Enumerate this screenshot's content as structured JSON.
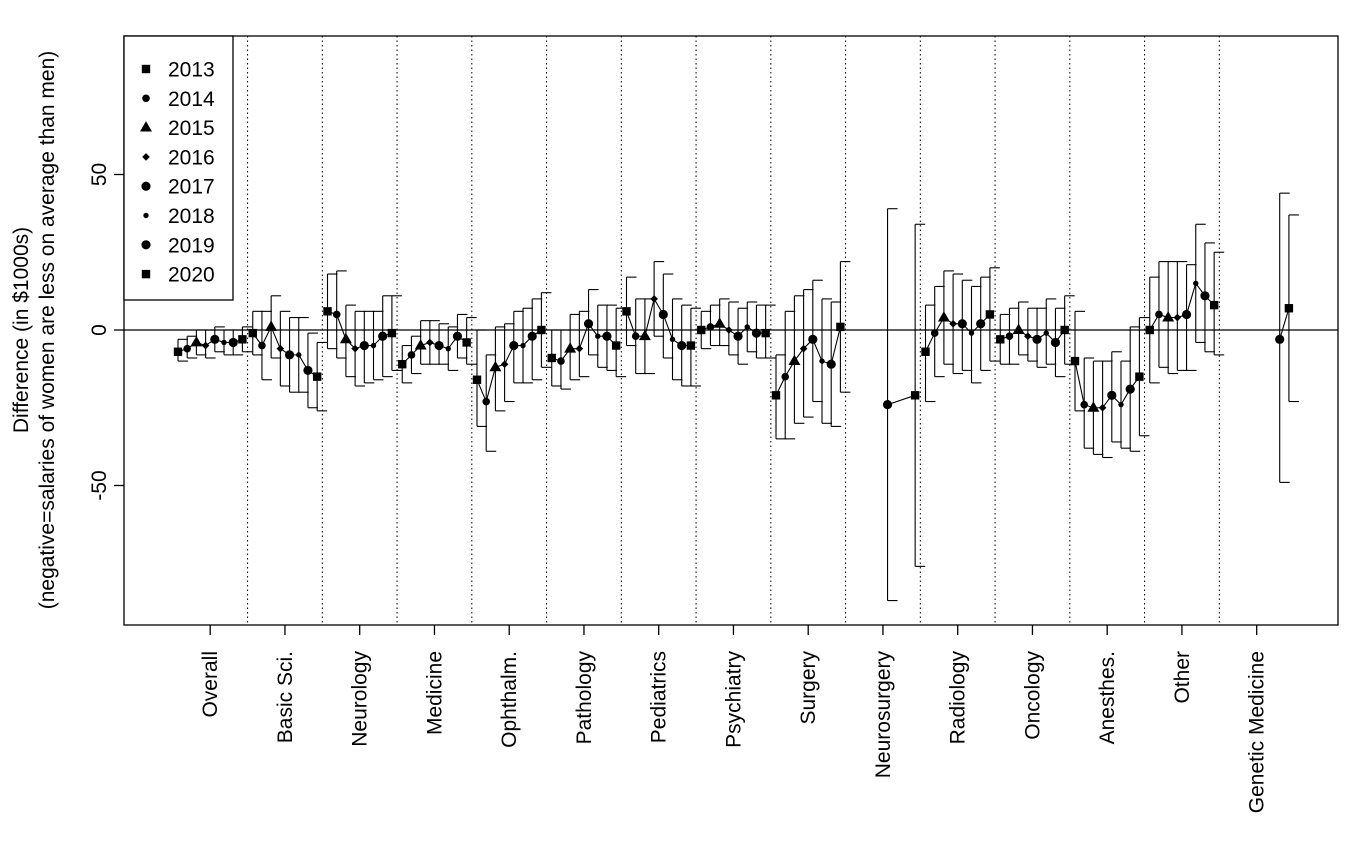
{
  "chart_data": {
    "type": "scatter",
    "ylabel_line1": "Difference (in $1000s)",
    "ylabel_line2": "(negative=salaries of women are less on average than men)",
    "ylim": [
      -95,
      95
    ],
    "yticks": [
      -50,
      0,
      50
    ],
    "reference_line_y": 0,
    "legend_position": "top-left",
    "years": [
      "2013",
      "2014",
      "2015",
      "2016",
      "2017",
      "2018",
      "2019",
      "2020"
    ],
    "markers": [
      "square",
      "circle",
      "triangle",
      "diamond",
      "circle",
      "circle",
      "circle",
      "square"
    ],
    "categories": [
      "Overall",
      "Basic Sci.",
      "Neurology",
      "Medicine",
      "Ophthalm.",
      "Pathology",
      "Pediatrics",
      "Psychiatry",
      "Surgery",
      "Neurosurgery",
      "Radiology",
      "Oncology",
      "Anesthes.",
      "Other",
      "Genetic Medicine"
    ],
    "groups": [
      {
        "category": "Overall",
        "points": [
          {
            "year": "2013",
            "value": -7,
            "lo": -10,
            "hi": -3
          },
          {
            "year": "2014",
            "value": -6,
            "lo": -9,
            "hi": -2
          },
          {
            "year": "2015",
            "value": -4,
            "lo": -8,
            "hi": 0
          },
          {
            "year": "2016",
            "value": -5,
            "lo": -9,
            "hi": 0
          },
          {
            "year": "2017",
            "value": -3,
            "lo": -7,
            "hi": 1
          },
          {
            "year": "2018",
            "value": -4,
            "lo": -8,
            "hi": 0
          },
          {
            "year": "2019",
            "value": -4,
            "lo": -8,
            "hi": 0
          },
          {
            "year": "2020",
            "value": -3,
            "lo": -7,
            "hi": 1
          }
        ]
      },
      {
        "category": "Basic Sci.",
        "points": [
          {
            "year": "2013",
            "value": -1,
            "lo": -8,
            "hi": 6
          },
          {
            "year": "2014",
            "value": -5,
            "lo": -16,
            "hi": 6
          },
          {
            "year": "2015",
            "value": 1,
            "lo": -9,
            "hi": 11
          },
          {
            "year": "2016",
            "value": -6,
            "lo": -18,
            "hi": 6
          },
          {
            "year": "2017",
            "value": -8,
            "lo": -20,
            "hi": 4
          },
          {
            "year": "2018",
            "value": -8,
            "lo": -20,
            "hi": 4
          },
          {
            "year": "2019",
            "value": -13,
            "lo": -25,
            "hi": -1
          },
          {
            "year": "2020",
            "value": -15,
            "lo": -26,
            "hi": -4
          }
        ]
      },
      {
        "category": "Neurology",
        "points": [
          {
            "year": "2013",
            "value": 6,
            "lo": -6,
            "hi": 18
          },
          {
            "year": "2014",
            "value": 5,
            "lo": -9,
            "hi": 19
          },
          {
            "year": "2015",
            "value": -3,
            "lo": -15,
            "hi": 8
          },
          {
            "year": "2016",
            "value": -6,
            "lo": -18,
            "hi": 6
          },
          {
            "year": "2017",
            "value": -5,
            "lo": -17,
            "hi": 6
          },
          {
            "year": "2018",
            "value": -5,
            "lo": -16,
            "hi": 6
          },
          {
            "year": "2019",
            "value": -2,
            "lo": -15,
            "hi": 11
          },
          {
            "year": "2020",
            "value": -1,
            "lo": -13,
            "hi": 11
          }
        ]
      },
      {
        "category": "Medicine",
        "points": [
          {
            "year": "2013",
            "value": -11,
            "lo": -17,
            "hi": -5
          },
          {
            "year": "2014",
            "value": -8,
            "lo": -14,
            "hi": -2
          },
          {
            "year": "2015",
            "value": -5,
            "lo": -11,
            "hi": 3
          },
          {
            "year": "2016",
            "value": -4,
            "lo": -11,
            "hi": 3
          },
          {
            "year": "2017",
            "value": -5,
            "lo": -11,
            "hi": 2
          },
          {
            "year": "2018",
            "value": -6,
            "lo": -13,
            "hi": 1
          },
          {
            "year": "2019",
            "value": -2,
            "lo": -9,
            "hi": 5
          },
          {
            "year": "2020",
            "value": -4,
            "lo": -11,
            "hi": 4
          }
        ]
      },
      {
        "category": "Ophthalm.",
        "points": [
          {
            "year": "2013",
            "value": -16,
            "lo": -31,
            "hi": 0
          },
          {
            "year": "2014",
            "value": -23,
            "lo": -39,
            "hi": -8
          },
          {
            "year": "2015",
            "value": -12,
            "lo": -26,
            "hi": 1
          },
          {
            "year": "2016",
            "value": -11,
            "lo": -23,
            "hi": 2
          },
          {
            "year": "2017",
            "value": -5,
            "lo": -17,
            "hi": 6
          },
          {
            "year": "2018",
            "value": -5,
            "lo": -17,
            "hi": 7
          },
          {
            "year": "2019",
            "value": -2,
            "lo": -16,
            "hi": 10
          },
          {
            "year": "2020",
            "value": 0,
            "lo": -12,
            "hi": 12
          }
        ]
      },
      {
        "category": "Pathology",
        "points": [
          {
            "year": "2013",
            "value": -9,
            "lo": -18,
            "hi": 0
          },
          {
            "year": "2014",
            "value": -10,
            "lo": -19,
            "hi": 0
          },
          {
            "year": "2015",
            "value": -6,
            "lo": -16,
            "hi": 5
          },
          {
            "year": "2016",
            "value": -6,
            "lo": -15,
            "hi": 6
          },
          {
            "year": "2017",
            "value": 2,
            "lo": -8,
            "hi": 13
          },
          {
            "year": "2018",
            "value": -2,
            "lo": -12,
            "hi": 8
          },
          {
            "year": "2019",
            "value": -2,
            "lo": -13,
            "hi": 8
          },
          {
            "year": "2020",
            "value": -5,
            "lo": -15,
            "hi": 7
          }
        ]
      },
      {
        "category": "Pediatrics",
        "points": [
          {
            "year": "2013",
            "value": 6,
            "lo": -5,
            "hi": 17
          },
          {
            "year": "2014",
            "value": -2,
            "lo": -14,
            "hi": 10
          },
          {
            "year": "2015",
            "value": -2,
            "lo": -14,
            "hi": 10
          },
          {
            "year": "2016",
            "value": 10,
            "lo": -2,
            "hi": 22
          },
          {
            "year": "2017",
            "value": 5,
            "lo": -9,
            "hi": 18
          },
          {
            "year": "2018",
            "value": -3,
            "lo": -16,
            "hi": 10
          },
          {
            "year": "2019",
            "value": -5,
            "lo": -18,
            "hi": 8
          },
          {
            "year": "2020",
            "value": -5,
            "lo": -18,
            "hi": 7
          }
        ]
      },
      {
        "category": "Psychiatry",
        "points": [
          {
            "year": "2013",
            "value": 0,
            "lo": -6,
            "hi": 6
          },
          {
            "year": "2014",
            "value": 1,
            "lo": -5,
            "hi": 8
          },
          {
            "year": "2015",
            "value": 2,
            "lo": -5,
            "hi": 10
          },
          {
            "year": "2016",
            "value": 0,
            "lo": -8,
            "hi": 9
          },
          {
            "year": "2017",
            "value": -2,
            "lo": -11,
            "hi": 7
          },
          {
            "year": "2018",
            "value": 1,
            "lo": -7,
            "hi": 9
          },
          {
            "year": "2019",
            "value": -1,
            "lo": -9,
            "hi": 8
          },
          {
            "year": "2020",
            "value": -1,
            "lo": -9,
            "hi": 8
          }
        ]
      },
      {
        "category": "Surgery",
        "points": [
          {
            "year": "2013",
            "value": -21,
            "lo": -35,
            "hi": -8
          },
          {
            "year": "2014",
            "value": -15,
            "lo": -35,
            "hi": 6
          },
          {
            "year": "2015",
            "value": -10,
            "lo": -30,
            "hi": 11
          },
          {
            "year": "2016",
            "value": -6,
            "lo": -28,
            "hi": 13
          },
          {
            "year": "2017",
            "value": -3,
            "lo": -23,
            "hi": 16
          },
          {
            "year": "2018",
            "value": -10,
            "lo": -30,
            "hi": 10
          },
          {
            "year": "2019",
            "value": -11,
            "lo": -31,
            "hi": 9
          },
          {
            "year": "2020",
            "value": 1,
            "lo": -20,
            "hi": 22
          }
        ]
      },
      {
        "category": "Neurosurgery",
        "points": [
          {
            "year": "2017",
            "value": -24,
            "lo": -87,
            "hi": 39
          },
          {
            "year": "2020",
            "value": -21,
            "lo": -76,
            "hi": 34
          }
        ]
      },
      {
        "category": "Radiology",
        "points": [
          {
            "year": "2013",
            "value": -7,
            "lo": -23,
            "hi": 8
          },
          {
            "year": "2014",
            "value": -1,
            "lo": -15,
            "hi": 14
          },
          {
            "year": "2015",
            "value": 4,
            "lo": -11,
            "hi": 19
          },
          {
            "year": "2016",
            "value": 2,
            "lo": -14,
            "hi": 18
          },
          {
            "year": "2017",
            "value": 2,
            "lo": -13,
            "hi": 16
          },
          {
            "year": "2018",
            "value": -1,
            "lo": -17,
            "hi": 14
          },
          {
            "year": "2019",
            "value": 2,
            "lo": -13,
            "hi": 17
          },
          {
            "year": "2020",
            "value": 5,
            "lo": -10,
            "hi": 20
          }
        ]
      },
      {
        "category": "Oncology",
        "points": [
          {
            "year": "2013",
            "value": -3,
            "lo": -11,
            "hi": 5
          },
          {
            "year": "2014",
            "value": -2,
            "lo": -11,
            "hi": 7
          },
          {
            "year": "2015",
            "value": 0,
            "lo": -8,
            "hi": 9
          },
          {
            "year": "2016",
            "value": -2,
            "lo": -10,
            "hi": 7
          },
          {
            "year": "2017",
            "value": -3,
            "lo": -12,
            "hi": 7
          },
          {
            "year": "2018",
            "value": -1,
            "lo": -11,
            "hi": 10
          },
          {
            "year": "2019",
            "value": -4,
            "lo": -15,
            "hi": 7
          },
          {
            "year": "2020",
            "value": 0,
            "lo": -11,
            "hi": 11
          }
        ]
      },
      {
        "category": "Anesthes.",
        "points": [
          {
            "year": "2013",
            "value": -10,
            "lo": -26,
            "hi": 6
          },
          {
            "year": "2014",
            "value": -24,
            "lo": -38,
            "hi": -9
          },
          {
            "year": "2015",
            "value": -25,
            "lo": -40,
            "hi": -10
          },
          {
            "year": "2016",
            "value": -25,
            "lo": -41,
            "hi": -10
          },
          {
            "year": "2017",
            "value": -21,
            "lo": -36,
            "hi": -7
          },
          {
            "year": "2018",
            "value": -24,
            "lo": -38,
            "hi": -10
          },
          {
            "year": "2019",
            "value": -19,
            "lo": -39,
            "hi": 1
          },
          {
            "year": "2020",
            "value": -15,
            "lo": -34,
            "hi": 4
          }
        ]
      },
      {
        "category": "Other",
        "points": [
          {
            "year": "2013",
            "value": 0,
            "lo": -17,
            "hi": 17
          },
          {
            "year": "2014",
            "value": 5,
            "lo": -12,
            "hi": 22
          },
          {
            "year": "2015",
            "value": 4,
            "lo": -14,
            "hi": 22
          },
          {
            "year": "2016",
            "value": 4,
            "lo": -13,
            "hi": 22
          },
          {
            "year": "2017",
            "value": 5,
            "lo": -13,
            "hi": 21
          },
          {
            "year": "2018",
            "value": 15,
            "lo": -4,
            "hi": 34
          },
          {
            "year": "2019",
            "value": 11,
            "lo": -7,
            "hi": 28
          },
          {
            "year": "2020",
            "value": 8,
            "lo": -8,
            "hi": 25
          }
        ]
      },
      {
        "category": "Genetic Medicine",
        "points": [
          {
            "year": "2019",
            "value": -3,
            "lo": -49,
            "hi": 44
          },
          {
            "year": "2020",
            "value": 7,
            "lo": -23,
            "hi": 37
          }
        ]
      }
    ]
  }
}
